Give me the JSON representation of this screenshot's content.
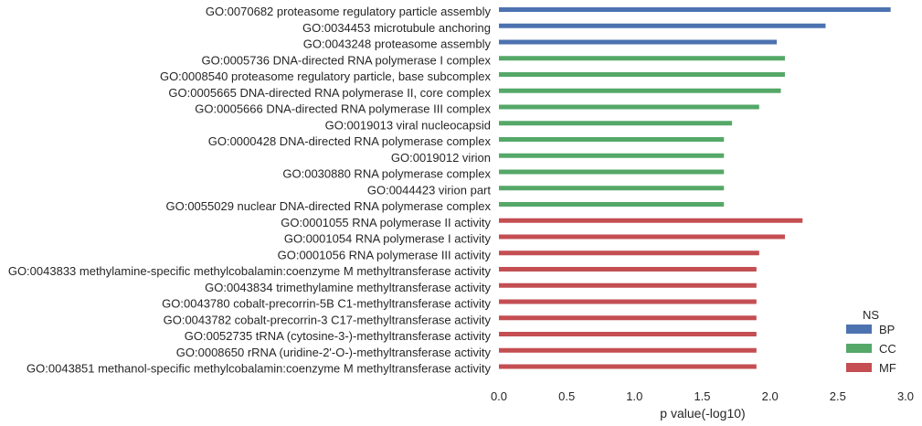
{
  "chart_data": {
    "type": "bar",
    "orientation": "horizontal",
    "xlabel": "p value(-log10)",
    "xlim": [
      0,
      3.0
    ],
    "xticks": [
      "0.0",
      "0.5",
      "1.0",
      "1.5",
      "2.0",
      "2.5",
      "3.0"
    ],
    "grid": false,
    "legend": {
      "title": "NS",
      "placement": "bottom-right",
      "entries": [
        {
          "name": "BP",
          "color": "#4c72b0"
        },
        {
          "name": "CC",
          "color": "#55a868"
        },
        {
          "name": "MF",
          "color": "#c44e52"
        }
      ]
    },
    "bars": [
      {
        "term": "GO:0070682 proteasome regulatory particle assembly",
        "value": 2.89,
        "ns": "BP"
      },
      {
        "term": "GO:0034453 microtubule anchoring",
        "value": 2.41,
        "ns": "BP"
      },
      {
        "term": "GO:0043248 proteasome assembly",
        "value": 2.05,
        "ns": "BP"
      },
      {
        "term": "GO:0005736 DNA-directed RNA polymerase I complex",
        "value": 2.11,
        "ns": "CC"
      },
      {
        "term": "GO:0008540 proteasome regulatory particle, base subcomplex",
        "value": 2.11,
        "ns": "CC"
      },
      {
        "term": "GO:0005665 DNA-directed RNA polymerase II, core complex",
        "value": 2.08,
        "ns": "CC"
      },
      {
        "term": "GO:0005666 DNA-directed RNA polymerase III complex",
        "value": 1.92,
        "ns": "CC"
      },
      {
        "term": "GO:0019013 viral nucleocapsid",
        "value": 1.72,
        "ns": "CC"
      },
      {
        "term": "GO:0000428 DNA-directed RNA polymerase complex",
        "value": 1.66,
        "ns": "CC"
      },
      {
        "term": "GO:0019012 virion",
        "value": 1.66,
        "ns": "CC"
      },
      {
        "term": "GO:0030880 RNA polymerase complex",
        "value": 1.66,
        "ns": "CC"
      },
      {
        "term": "GO:0044423 virion part",
        "value": 1.66,
        "ns": "CC"
      },
      {
        "term": "GO:0055029 nuclear DNA-directed RNA polymerase complex",
        "value": 1.66,
        "ns": "CC"
      },
      {
        "term": "GO:0001055 RNA polymerase II activity",
        "value": 2.24,
        "ns": "MF"
      },
      {
        "term": "GO:0001054 RNA polymerase I activity",
        "value": 2.11,
        "ns": "MF"
      },
      {
        "term": "GO:0001056 RNA polymerase III activity",
        "value": 1.92,
        "ns": "MF"
      },
      {
        "term": "GO:0043833 methylamine-specific methylcobalamin:coenzyme M methyltransferase activity",
        "value": 1.9,
        "ns": "MF"
      },
      {
        "term": "GO:0043834 trimethylamine methyltransferase activity",
        "value": 1.9,
        "ns": "MF"
      },
      {
        "term": "GO:0043780 cobalt-precorrin-5B C1-methyltransferase activity",
        "value": 1.9,
        "ns": "MF"
      },
      {
        "term": "GO:0043782 cobalt-precorrin-3 C17-methyltransferase activity",
        "value": 1.9,
        "ns": "MF"
      },
      {
        "term": "GO:0052735 tRNA (cytosine-3-)-methyltransferase activity",
        "value": 1.9,
        "ns": "MF"
      },
      {
        "term": "GO:0008650 rRNA (uridine-2'-O-)-methyltransferase activity",
        "value": 1.9,
        "ns": "MF"
      },
      {
        "term": "GO:0043851 methanol-specific methylcobalamin:coenzyme M methyltransferase activity",
        "value": 1.9,
        "ns": "MF"
      }
    ]
  }
}
